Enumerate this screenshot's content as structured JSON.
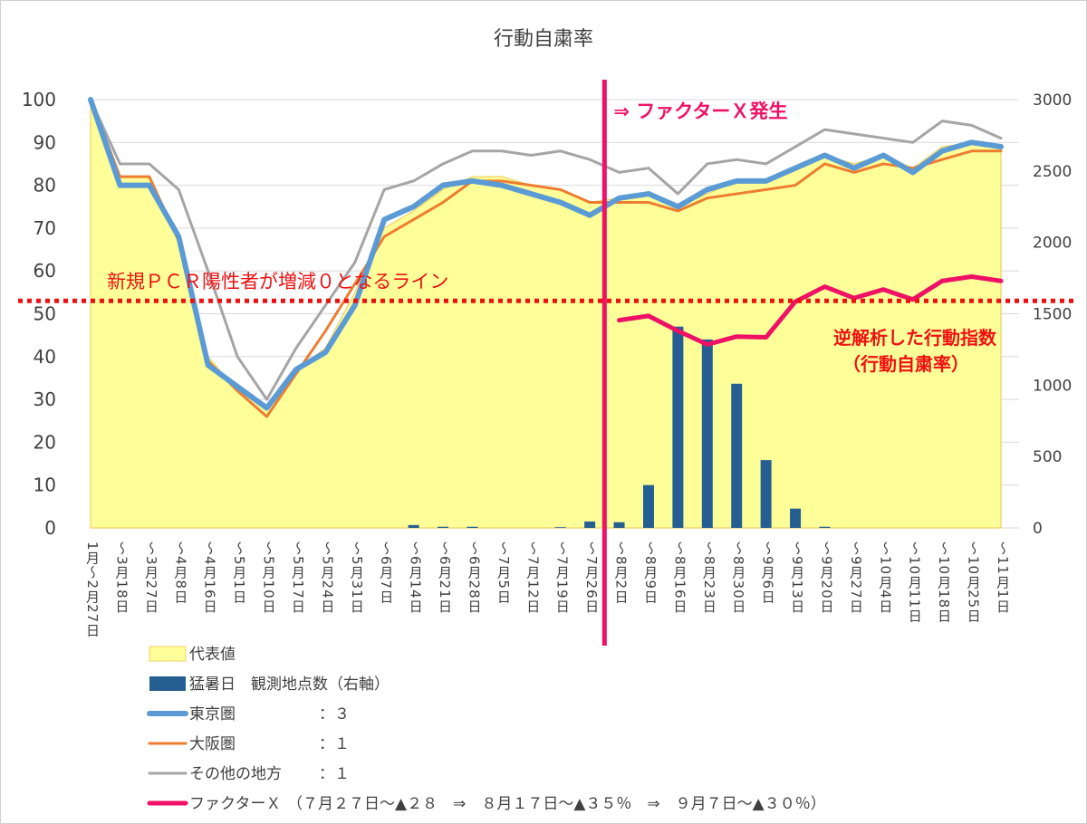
{
  "chart_data": {
    "type": "combo",
    "title": "行動自粛率",
    "categories": [
      "1月～2月27日",
      "～3月18日",
      "～3月27日",
      "～4月8日",
      "～4月16日",
      "～5月1日",
      "～5月10日",
      "～5月17日",
      "～5月24日",
      "～5月31日",
      "～6月7日",
      "～6月14日",
      "～6月21日",
      "～6月28日",
      "～7月5日",
      "～7月12日",
      "～7月19日",
      "～7月26日",
      "～8月2日",
      "～8月9日",
      "～8月16日",
      "～8月23日",
      "～8月30日",
      "～9月6日",
      "～9月13日",
      "～9月20日",
      "～9月27日",
      "～10月4日",
      "～10月11日",
      "～10月18日",
      "～10月25日",
      "～11月1日"
    ],
    "y_left": {
      "ticks": [
        "0",
        "10",
        "20",
        "30",
        "40",
        "50",
        "60",
        "70",
        "80",
        "90",
        "100"
      ],
      "ylim": [
        0,
        100
      ]
    },
    "y_right": {
      "ticks": [
        "0",
        "500",
        "1000",
        "1500",
        "2000",
        "2500",
        "3000"
      ],
      "ylim": [
        0,
        3000
      ]
    },
    "series": [
      {
        "name": "代表値",
        "kind": "area",
        "axis": "left",
        "color": "#ffff99",
        "values": [
          100,
          82,
          82,
          68,
          40,
          32,
          28,
          37,
          42,
          55,
          70,
          74,
          79,
          82,
          82,
          80,
          79,
          76,
          77,
          78,
          75,
          78,
          81,
          81,
          84,
          87,
          85,
          87,
          84,
          89,
          90,
          89
        ]
      },
      {
        "name": "猛暑日　観測地点数（右軸）",
        "kind": "bar",
        "axis": "right",
        "color": "#255e91",
        "values": [
          0,
          0,
          0,
          0,
          0,
          0,
          0,
          0,
          0,
          0,
          0,
          20,
          8,
          8,
          0,
          0,
          5,
          45,
          40,
          300,
          1410,
          1320,
          1010,
          475,
          135,
          8,
          0,
          0,
          0,
          0,
          0,
          0
        ]
      },
      {
        "name": "東京圏",
        "weight": "：３",
        "kind": "line",
        "axis": "left",
        "color": "#5b9bd5",
        "values": [
          100,
          80,
          80,
          68,
          38,
          33,
          28,
          37,
          41,
          52,
          72,
          75,
          80,
          81,
          80,
          78,
          76,
          73,
          77,
          78,
          75,
          79,
          81,
          81,
          84,
          87,
          84,
          87,
          83,
          88,
          90,
          89
        ]
      },
      {
        "name": "大阪圏",
        "weight": "：１",
        "kind": "line",
        "axis": "left",
        "color": "#ed7d31",
        "values": [
          100,
          82,
          82,
          67,
          39,
          32,
          26,
          36,
          46,
          57,
          68,
          72,
          76,
          81,
          81,
          80,
          79,
          76,
          76,
          76,
          74,
          77,
          78,
          79,
          80,
          85,
          83,
          85,
          84,
          86,
          88,
          88
        ]
      },
      {
        "name": "その他の地方",
        "weight": "：１",
        "kind": "line",
        "axis": "left",
        "color": "#a5a5a5",
        "values": [
          100,
          85,
          85,
          79,
          60,
          40,
          30,
          42,
          52,
          62,
          79,
          81,
          85,
          88,
          88,
          87,
          88,
          86,
          83,
          84,
          78,
          85,
          86,
          85,
          89,
          93,
          92,
          91,
          90,
          95,
          94,
          91
        ]
      },
      {
        "name": "ファクターＸ",
        "kind": "line",
        "axis": "right",
        "color": "#ee1166",
        "values": [
          null,
          null,
          null,
          null,
          null,
          null,
          null,
          null,
          null,
          null,
          null,
          null,
          null,
          null,
          null,
          null,
          null,
          null,
          1455,
          1485,
          1380,
          1285,
          1340,
          1335,
          1585,
          1690,
          1610,
          1670,
          1600,
          1730,
          1760,
          1730
        ]
      }
    ],
    "legend_placement": "bottom-left",
    "legend_factor_suffix": "（７月２７日～▲２８　⇒　８月１７日～▲３５％　⇒　９月７日～▲３０％）",
    "annotations": {
      "threshold_label": "新規ＰＣＲ陽性者が増減０となるライン",
      "threshold_value": 53,
      "factor_label": "⇒ ファクターＸ発生",
      "factor_event_after_category": 17,
      "reverse_label_1": "逆解析した行動指数",
      "reverse_label_2": "（行動自粛率）"
    }
  }
}
